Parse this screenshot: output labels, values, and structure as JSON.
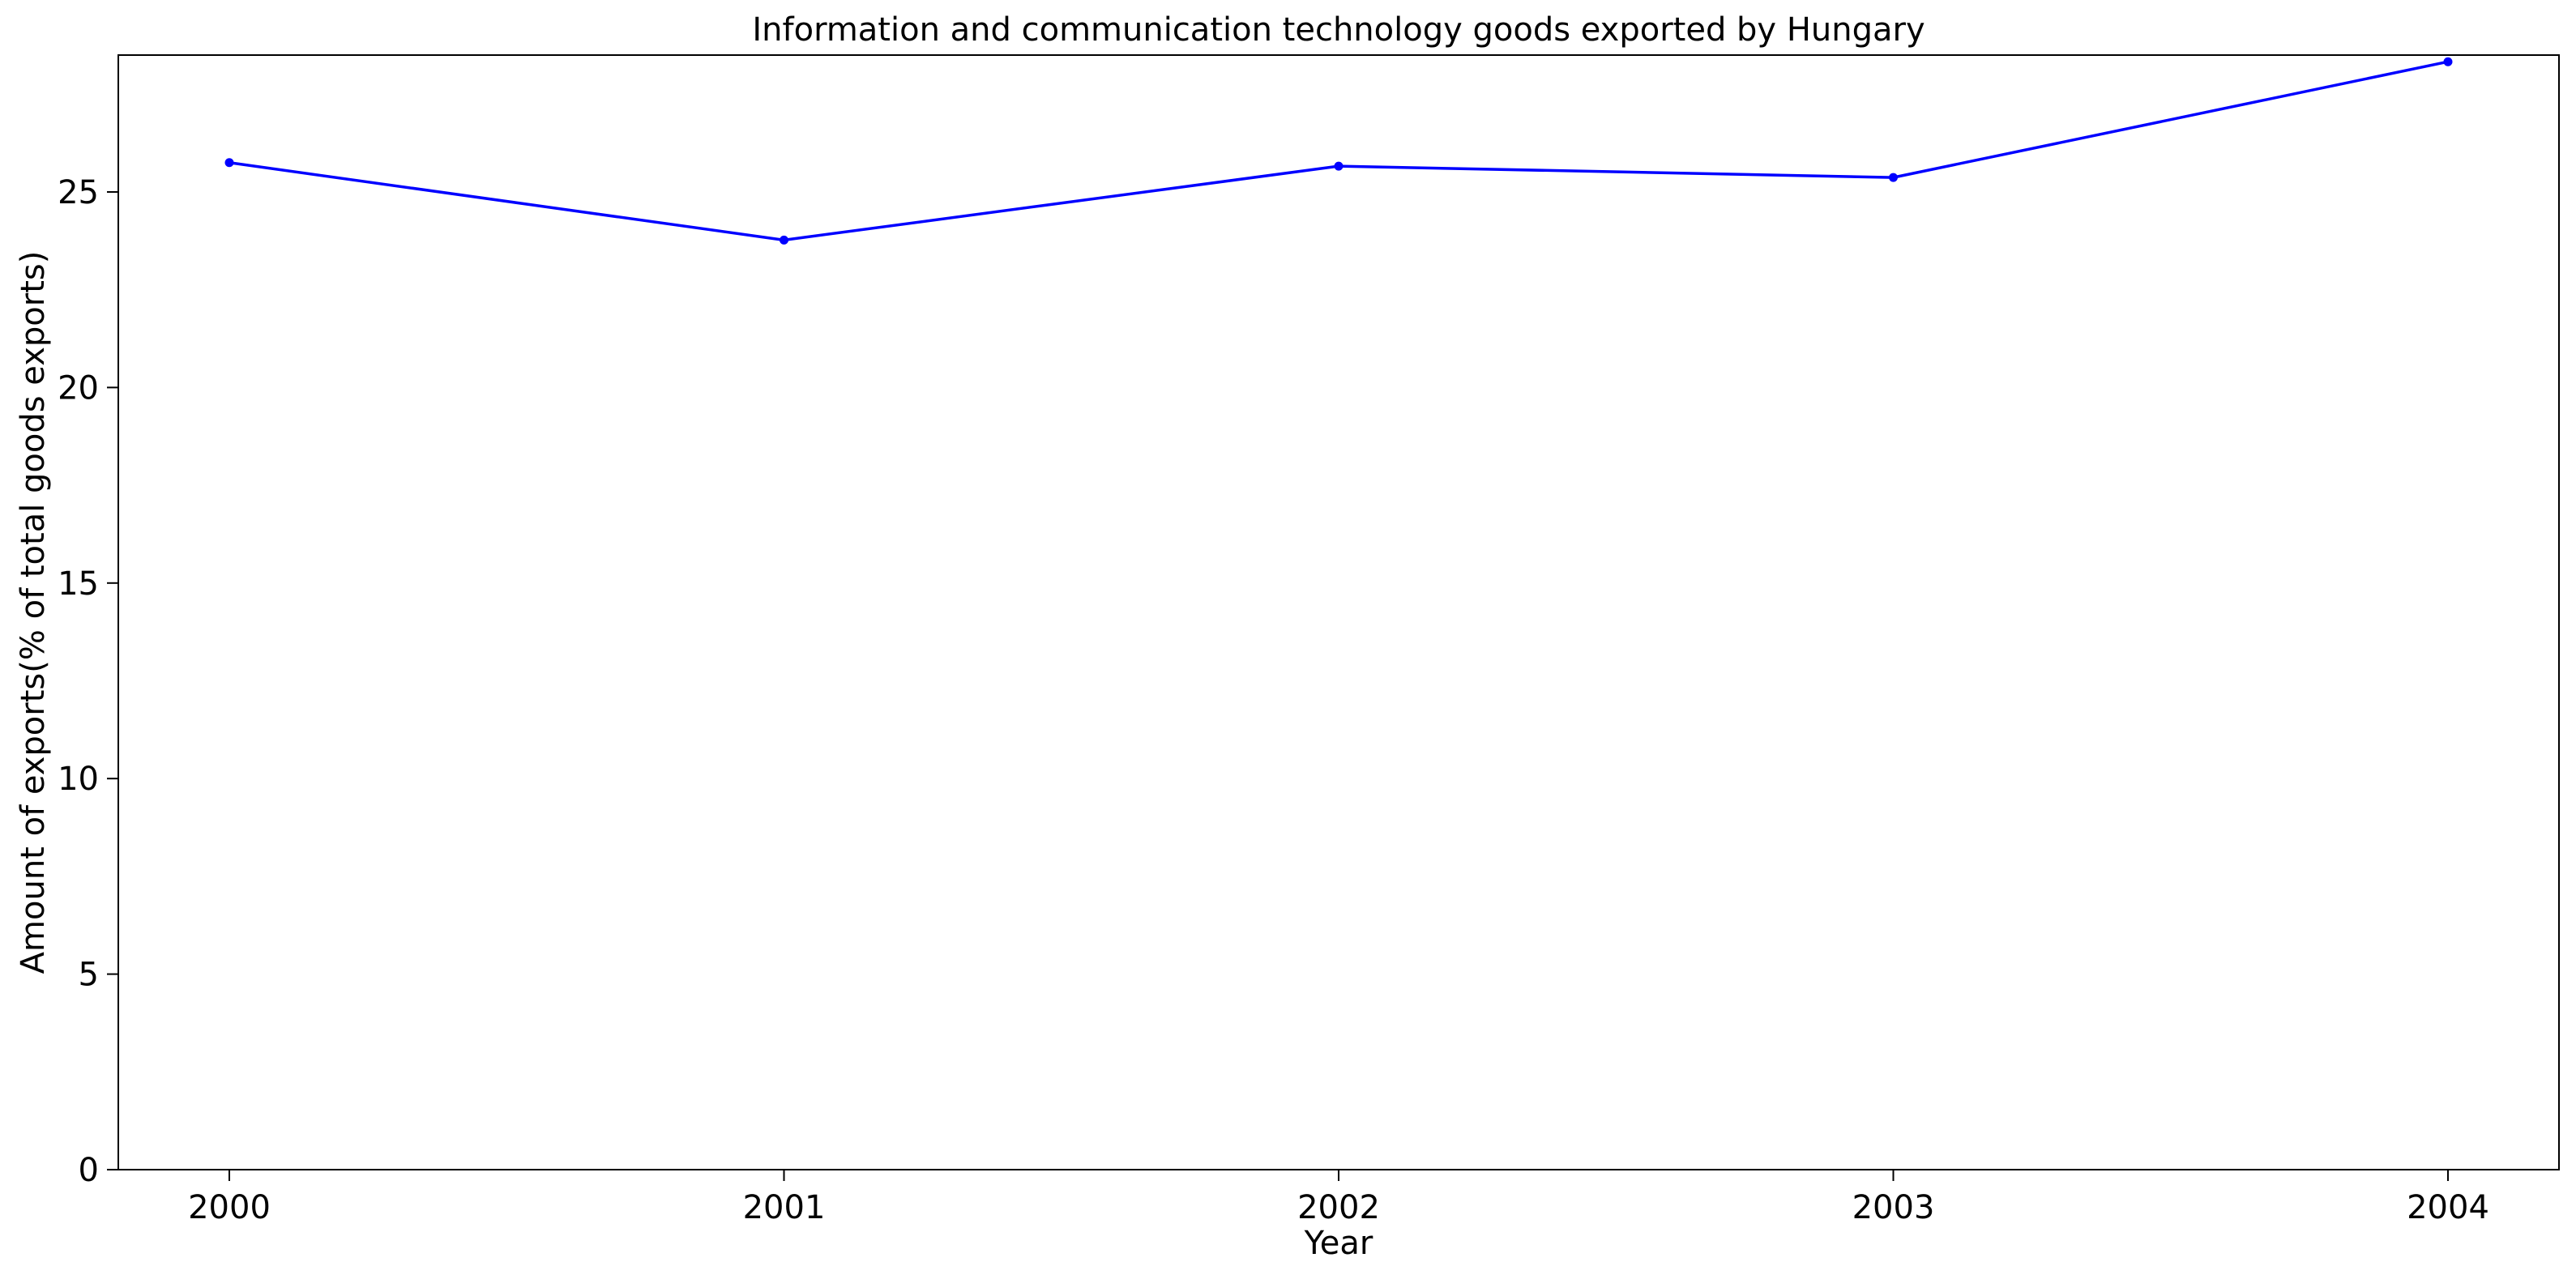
{
  "chart_data": {
    "type": "line",
    "title": "Information and communication technology goods exported by Hungary",
    "xlabel": "Year",
    "ylabel": "Amount of exports(% of total goods exports)",
    "x": [
      "2000",
      "2001",
      "2002",
      "2003",
      "2004"
    ],
    "series": [
      {
        "values": [
          25.75,
          23.77,
          25.66,
          25.37,
          28.33
        ],
        "color": "#0000ff"
      }
    ],
    "ylim": [
      0,
      28.5
    ],
    "yticks": [
      0,
      5,
      10,
      15,
      20,
      25
    ],
    "grid": false,
    "legend": "none",
    "markers": true
  }
}
